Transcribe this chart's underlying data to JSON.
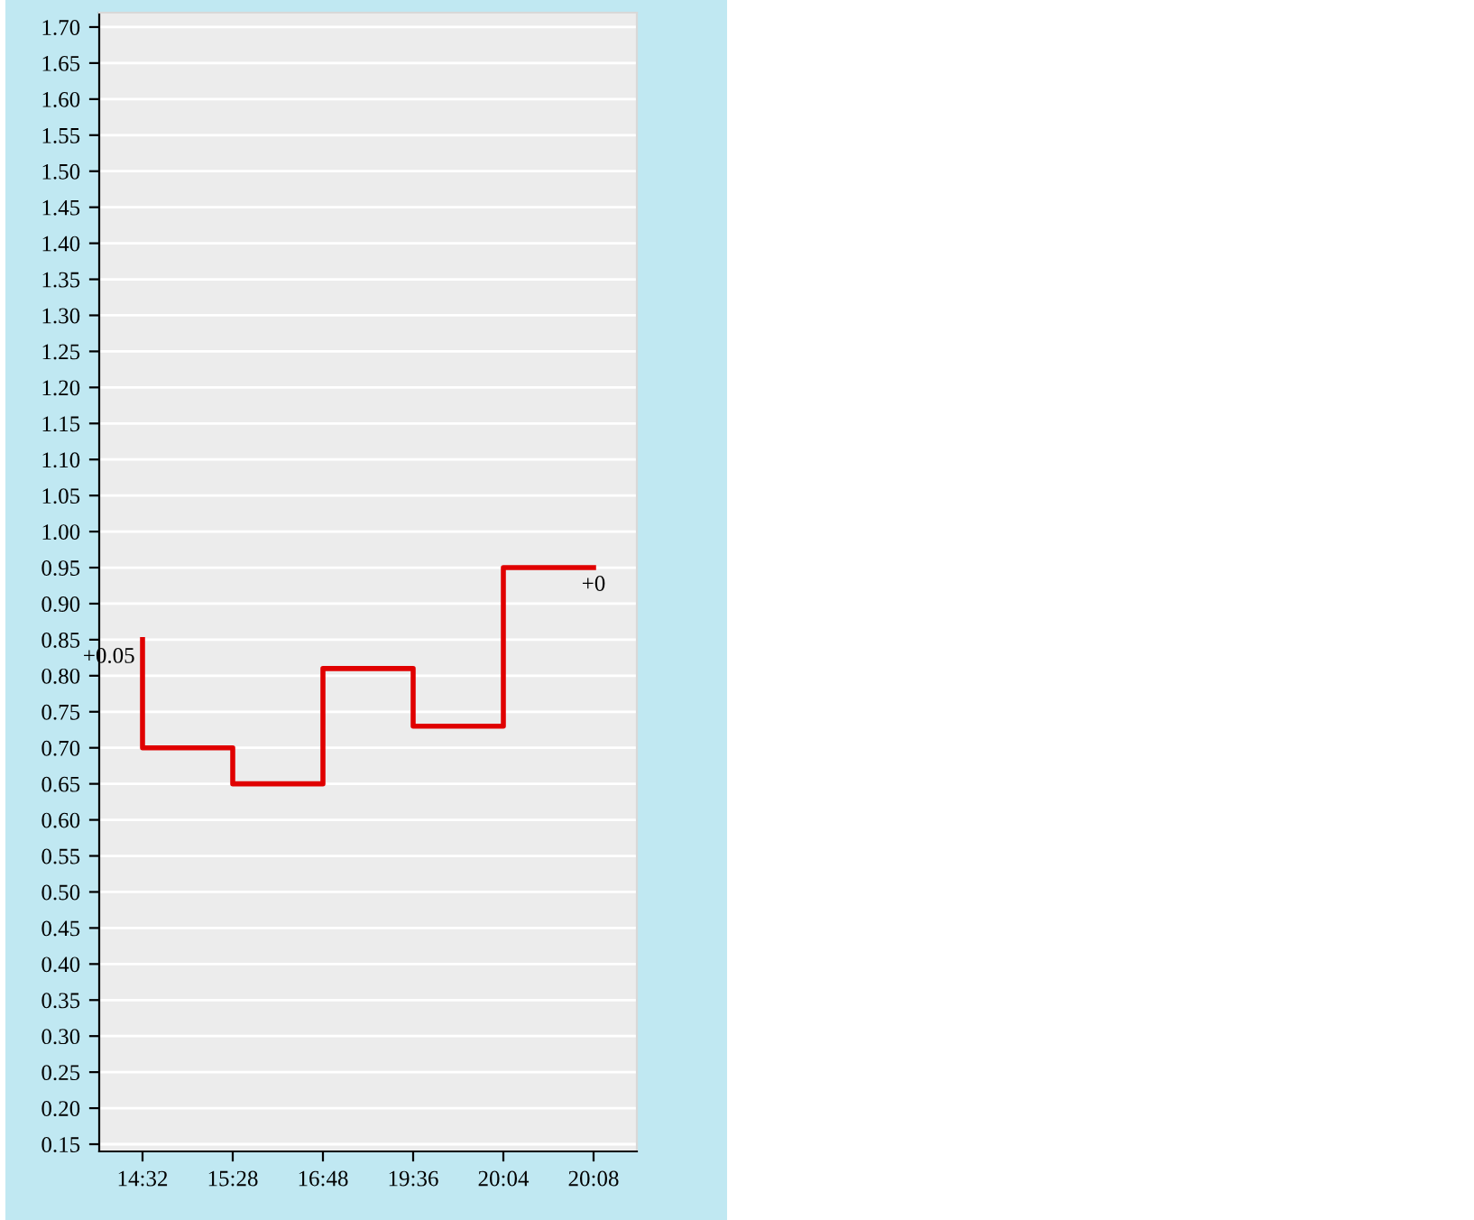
{
  "chart_data": {
    "type": "step",
    "categories": [
      "14:32",
      "15:28",
      "16:48",
      "19:36",
      "20:04",
      "20:08"
    ],
    "series": [
      {
        "color": "#e00000",
        "values": [
          0.85,
          0.7,
          0.65,
          0.81,
          0.73,
          0.95
        ]
      }
    ],
    "ylim": [
      0.14,
      1.72
    ],
    "yticks": [
      {
        "value": 0.15,
        "label": "0.15"
      },
      {
        "value": 0.2,
        "label": "0.20"
      },
      {
        "value": 0.25,
        "label": "0.25"
      },
      {
        "value": 0.3,
        "label": "0.30"
      },
      {
        "value": 0.35,
        "label": "0.35"
      },
      {
        "value": 0.4,
        "label": "0.40"
      },
      {
        "value": 0.45,
        "label": "0.45"
      },
      {
        "value": 0.5,
        "label": "0.50"
      },
      {
        "value": 0.55,
        "label": "0.55"
      },
      {
        "value": 0.6,
        "label": "0.60"
      },
      {
        "value": 0.65,
        "label": "0.65"
      },
      {
        "value": 0.7,
        "label": "0.70"
      },
      {
        "value": 0.75,
        "label": "0.75"
      },
      {
        "value": 0.8,
        "label": "0.80"
      },
      {
        "value": 0.85,
        "label": "0.85"
      },
      {
        "value": 0.9,
        "label": "0.90"
      },
      {
        "value": 0.95,
        "label": "0.95"
      },
      {
        "value": 1.0,
        "label": "1.00"
      },
      {
        "value": 1.05,
        "label": "1.05"
      },
      {
        "value": 1.1,
        "label": "1.10"
      },
      {
        "value": 1.15,
        "label": "1.15"
      },
      {
        "value": 1.2,
        "label": "1.20"
      },
      {
        "value": 1.25,
        "label": "1.25"
      },
      {
        "value": 1.3,
        "label": "1.30"
      },
      {
        "value": 1.35,
        "label": "1.35"
      },
      {
        "value": 1.4,
        "label": "1.40"
      },
      {
        "value": 1.45,
        "label": "1.45"
      },
      {
        "value": 1.5,
        "label": "1.50"
      },
      {
        "value": 1.55,
        "label": "1.55"
      },
      {
        "value": 1.6,
        "label": "1.60"
      },
      {
        "value": 1.65,
        "label": "1.65"
      },
      {
        "value": 1.7,
        "label": "1.70"
      }
    ],
    "grid": "y",
    "annotations": [
      {
        "text": "+0.05",
        "x": "14:32",
        "y": 0.85
      },
      {
        "text": "+0",
        "x": "20:08",
        "y": 0.95
      }
    ]
  }
}
